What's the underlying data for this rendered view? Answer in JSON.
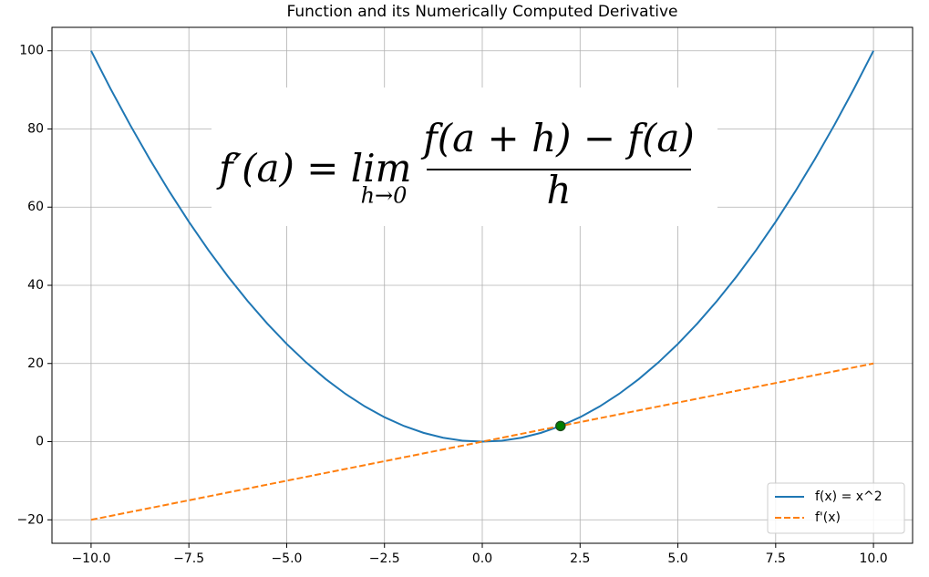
{
  "chart_data": {
    "type": "line",
    "title": "Function and its Numerically Computed Derivative",
    "x": [
      -10,
      -9.5,
      -9,
      -8.5,
      -8,
      -7.5,
      -7,
      -6.5,
      -6,
      -5.5,
      -5,
      -4.5,
      -4,
      -3.5,
      -3,
      -2.5,
      -2,
      -1.5,
      -1,
      -0.5,
      0,
      0.5,
      1,
      1.5,
      2,
      2.5,
      3,
      3.5,
      4,
      4.5,
      5,
      5.5,
      6,
      6.5,
      7,
      7.5,
      8,
      8.5,
      9,
      9.5,
      10
    ],
    "series": [
      {
        "name": "f(x) = x^2",
        "color": "#1f77b4",
        "style": "solid",
        "values": [
          100,
          90.25,
          81,
          72.25,
          64,
          56.25,
          49,
          42.25,
          36,
          30.25,
          25,
          20.25,
          16,
          12.25,
          9,
          6.25,
          4,
          2.25,
          1,
          0.25,
          0,
          0.25,
          1,
          2.25,
          4,
          6.25,
          9,
          12.25,
          16,
          20.25,
          25,
          30.25,
          36,
          42.25,
          49,
          56.25,
          64,
          72.25,
          81,
          90.25,
          100
        ]
      },
      {
        "name": "f'(x)",
        "color": "#ff7f0e",
        "style": "dashed",
        "values": [
          -20,
          -19,
          -18,
          -17,
          -16,
          -15,
          -14,
          -13,
          -12,
          -11,
          -10,
          -9,
          -8,
          -7,
          -6,
          -5,
          -4,
          -3,
          -2,
          -1,
          0,
          1,
          2,
          3,
          4,
          5,
          6,
          7,
          8,
          9,
          10,
          11,
          12,
          13,
          14,
          15,
          16,
          17,
          18,
          19,
          20
        ]
      }
    ],
    "point": {
      "x": 2,
      "y": 4,
      "color": "green"
    },
    "formula": {
      "lhs": "f′(a) = lim",
      "sub": "h→0",
      "numerator": "f(a + h) − f(a)",
      "denominator": "h"
    },
    "xlim": [
      -11,
      11
    ],
    "ylim": [
      -26,
      106
    ],
    "xticks": [
      {
        "value": -10,
        "label": "−10.0"
      },
      {
        "value": -7.5,
        "label": "−7.5"
      },
      {
        "value": -5,
        "label": "−5.0"
      },
      {
        "value": -2.5,
        "label": "−2.5"
      },
      {
        "value": 0,
        "label": "0.0"
      },
      2.5,
      {
        "value": 5,
        "label": "5.0"
      },
      7.5,
      {
        "value": 10,
        "label": "10.0"
      }
    ],
    "yticks": [
      {
        "value": -20,
        "label": "−20"
      },
      0,
      20,
      40,
      60,
      80,
      100
    ],
    "grid": true,
    "legend": "lower right"
  }
}
